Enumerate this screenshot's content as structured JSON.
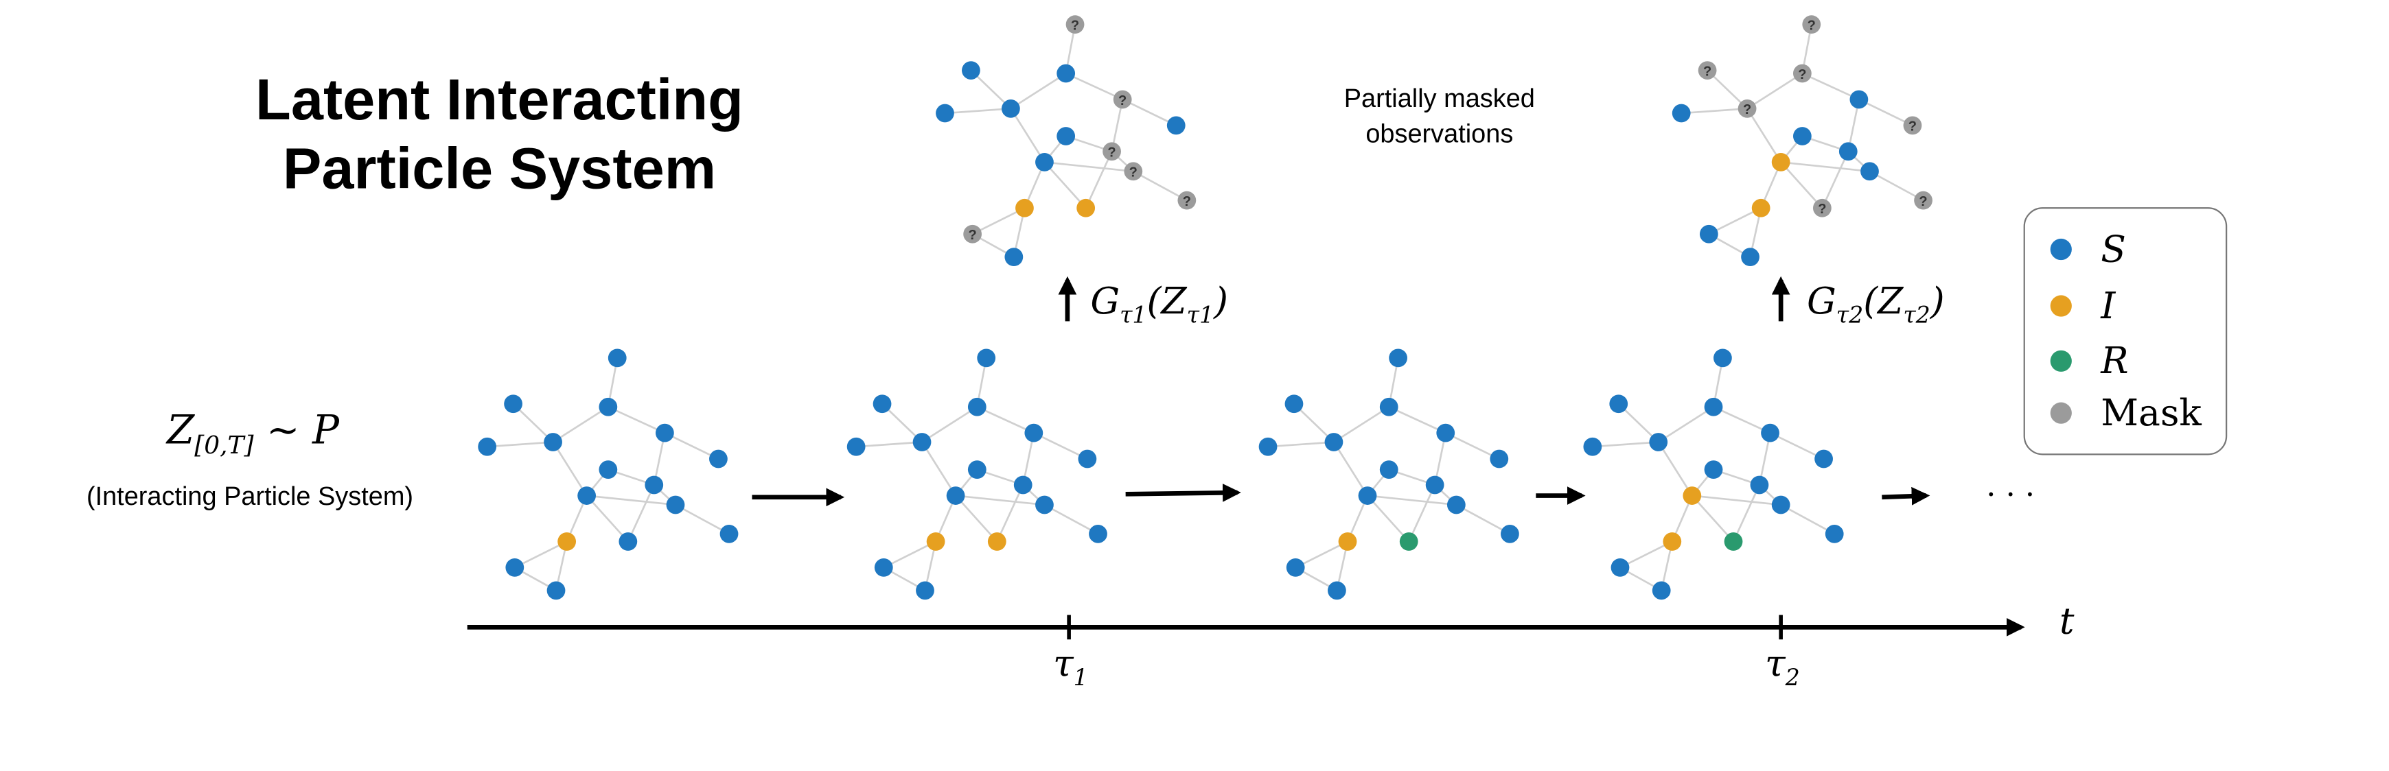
{
  "title": [
    "Latent Interacting",
    "Particle System"
  ],
  "observation_note": [
    "Partially masked",
    "observations"
  ],
  "process": {
    "formula": [
      {
        "text": "Z"
      },
      {
        "sub": "[0,T]"
      },
      {
        "text": " ∼ P"
      }
    ],
    "caption": "(Interacting Particle System)"
  },
  "observations": [
    {
      "label": [
        {
          "text": "G"
        },
        {
          "sub": "τ1"
        },
        {
          "text": "(Z"
        },
        {
          "sub": "τ1"
        },
        {
          "text": ")"
        }
      ]
    },
    {
      "label": [
        {
          "text": "G"
        },
        {
          "sub": "τ2"
        },
        {
          "text": "(Z"
        },
        {
          "sub": "τ2"
        },
        {
          "text": ")"
        }
      ]
    }
  ],
  "timeline": {
    "axis_label": "t",
    "ticks": [
      [
        {
          "text": "τ"
        },
        {
          "sub": "1"
        }
      ],
      [
        {
          "text": "τ"
        },
        {
          "sub": "2"
        }
      ]
    ],
    "ellipsis": "· · ·"
  },
  "legend": [
    {
      "label": "S",
      "color": "#1f78c1"
    },
    {
      "label": "I",
      "color": "#e6a020"
    },
    {
      "label": "R",
      "color": "#2a9a6e"
    },
    {
      "label": "Mask",
      "color": "#9b9b9b"
    }
  ]
}
